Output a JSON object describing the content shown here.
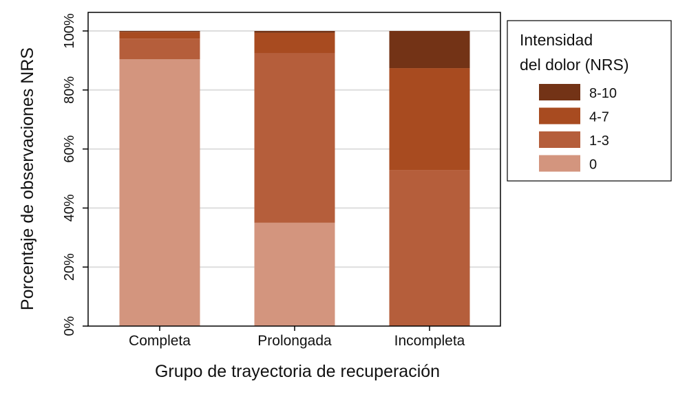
{
  "chart_data": {
    "type": "bar",
    "stacked": true,
    "title": "",
    "xlabel": "Grupo de trayectoria de recuperación",
    "ylabel": "Porcentaje de observaciones NRS",
    "ylim": [
      0,
      100
    ],
    "yticks": [
      "0%",
      "20%",
      "40%",
      "60%",
      "80%",
      "100%"
    ],
    "categories": [
      "Completa",
      "Prolongada",
      "Incompleta"
    ],
    "legend_title_lines": [
      "Intensidad",
      "del dolor (NRS)"
    ],
    "legend_position": "right",
    "series": [
      {
        "name": "0",
        "color": "#d3957e",
        "values": [
          90.4,
          35.0,
          0
        ]
      },
      {
        "name": "1-3",
        "color": "#b55e3b",
        "values": [
          7.0,
          57.4,
          52.9
        ]
      },
      {
        "name": "4-7",
        "color": "#a84b20",
        "values": [
          2.3,
          7.0,
          34.5
        ]
      },
      {
        "name": "8-10",
        "color": "#733316",
        "values": [
          0.3,
          0.6,
          12.6
        ]
      }
    ]
  }
}
